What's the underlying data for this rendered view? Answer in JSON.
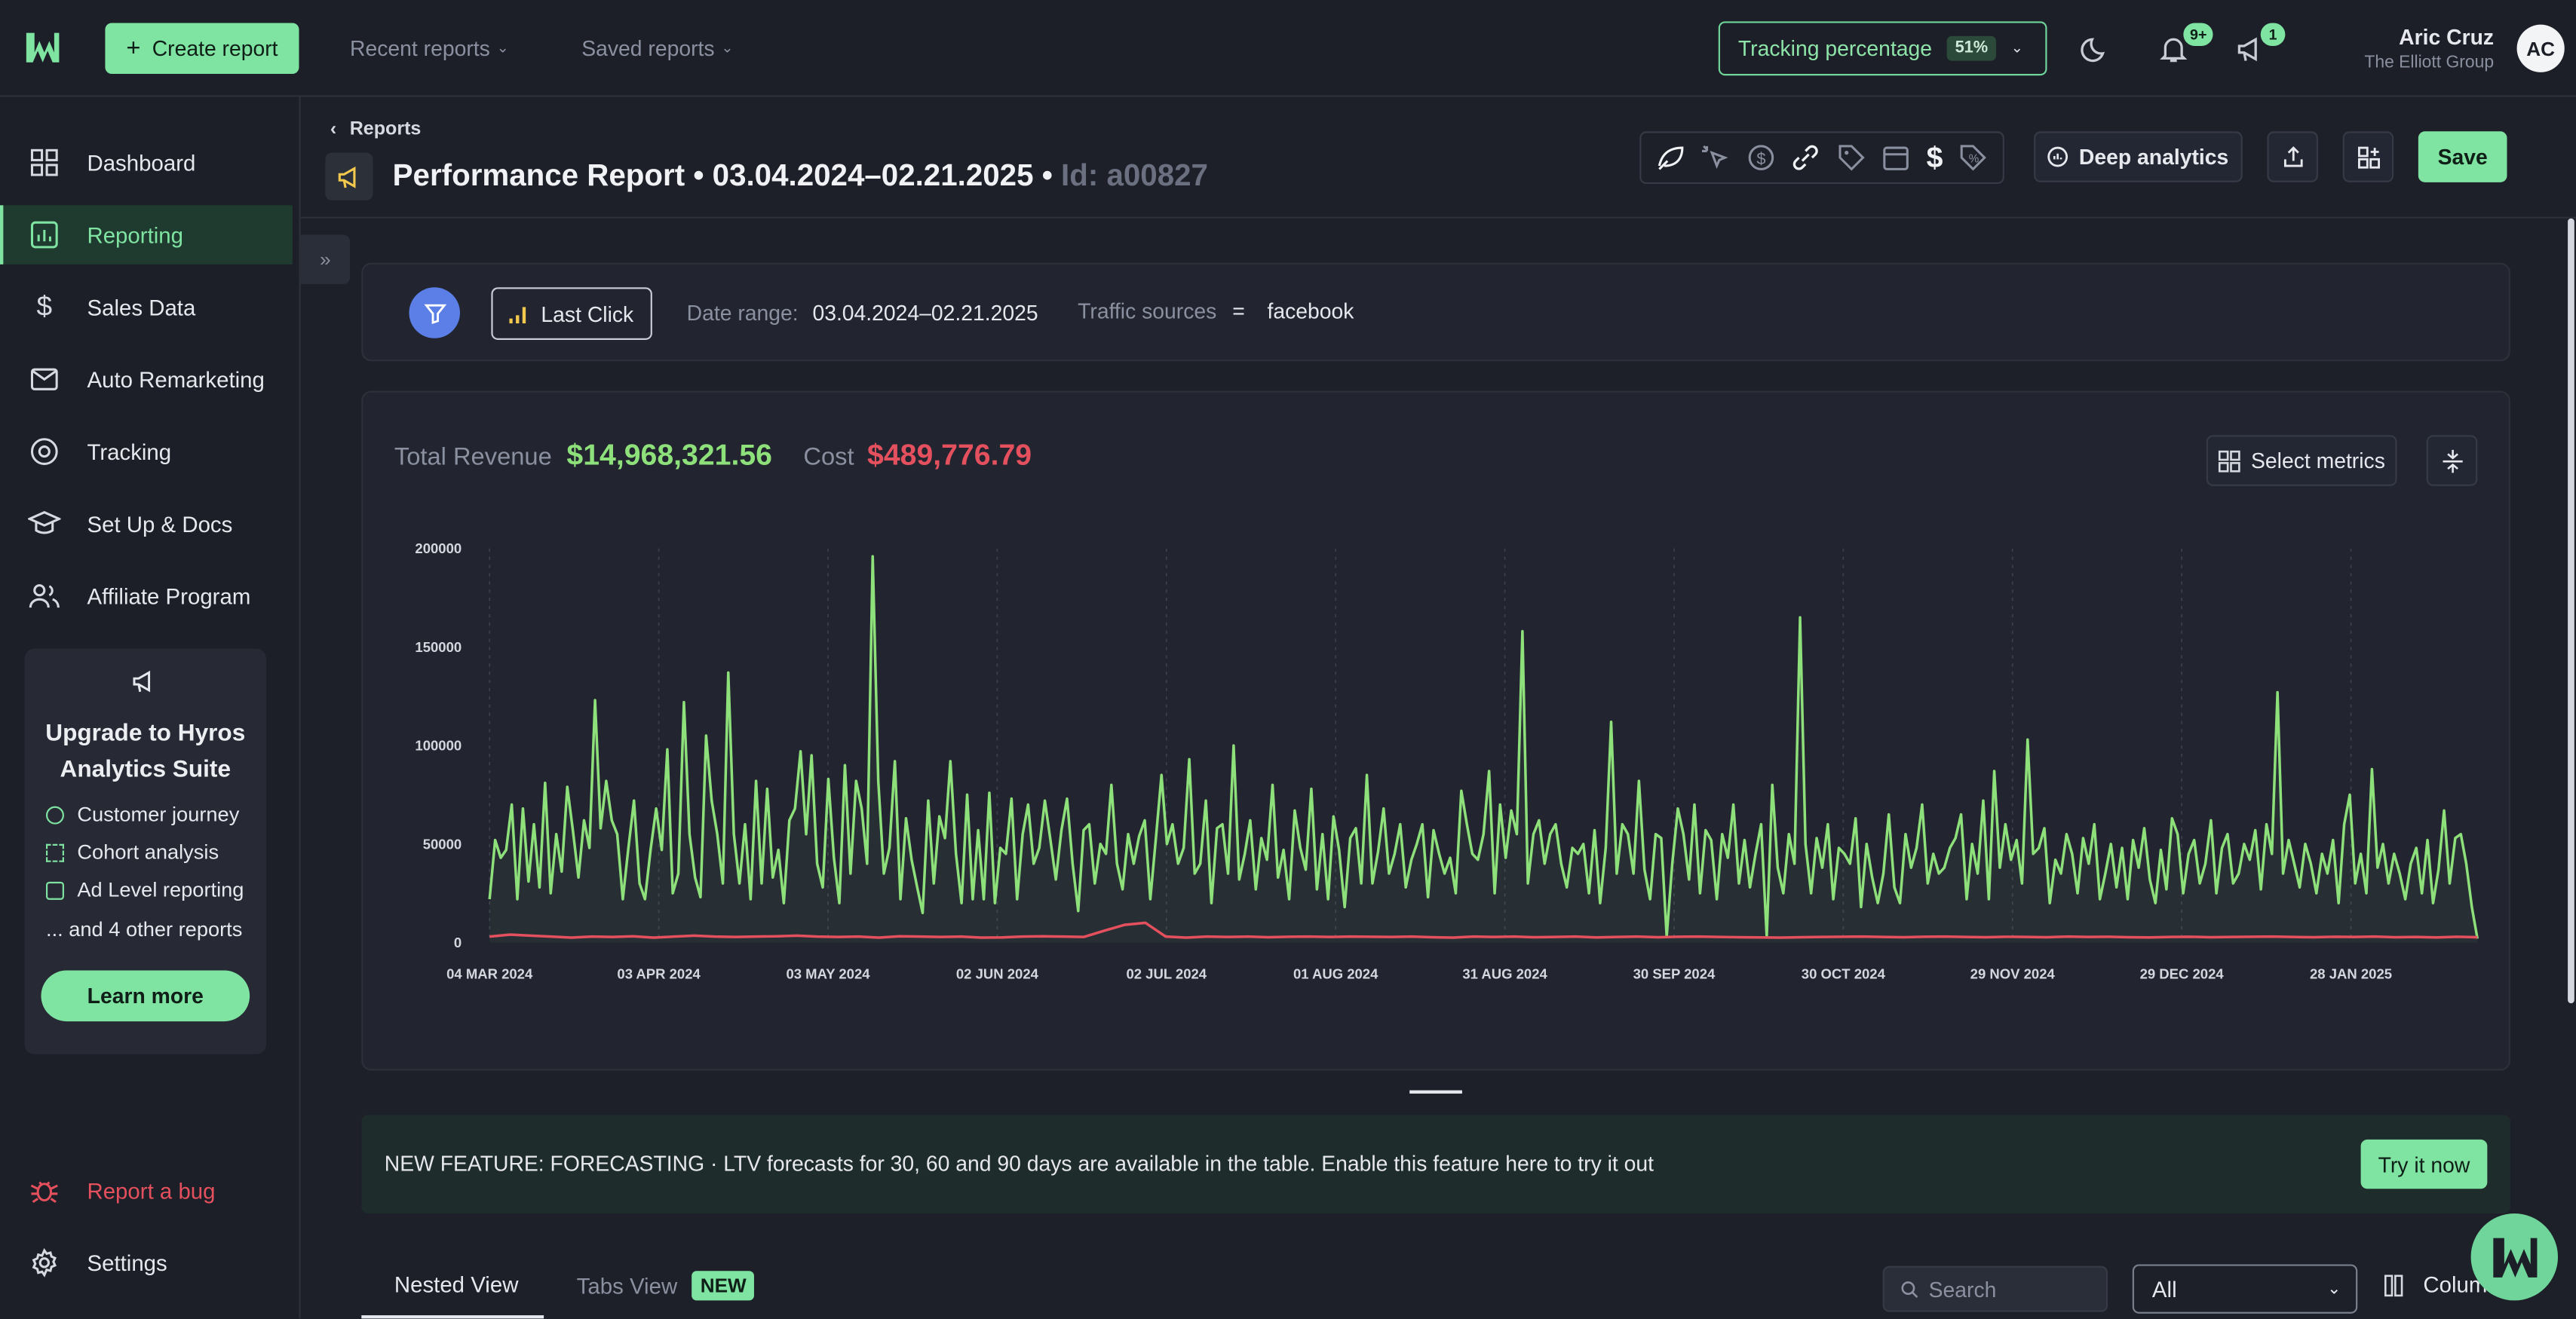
{
  "topbar": {
    "create_report": "Create report",
    "recent_reports": "Recent reports",
    "saved_reports": "Saved reports",
    "tracking_label": "Tracking percentage",
    "tracking_value": "51%",
    "notif_count": "9+",
    "announce_count": "1",
    "user_name": "Aric Cruz",
    "user_org": "The Elliott Group",
    "user_initials": "AC"
  },
  "sidebar": {
    "items": [
      {
        "label": "Dashboard"
      },
      {
        "label": "Reporting"
      },
      {
        "label": "Sales Data"
      },
      {
        "label": "Auto Remarketing"
      },
      {
        "label": "Tracking"
      },
      {
        "label": "Set Up & Docs"
      },
      {
        "label": "Affiliate Program"
      }
    ],
    "upgrade": {
      "title": "Upgrade to Hyros Analytics Suite",
      "features": [
        "Customer journey",
        "Cohort analysis",
        "Ad Level reporting",
        "... and 4 other reports"
      ],
      "learn_more": "Learn more"
    },
    "report_bug": "Report a bug",
    "settings": "Settings"
  },
  "header": {
    "breadcrumb": "Reports",
    "title": "Performance Report • 03.04.2024–02.21.2025 •",
    "report_id": "Id: a00827",
    "deep_analytics": "Deep analytics",
    "save": "Save"
  },
  "filters": {
    "attribution": "Last Click",
    "date_range_label": "Date range:",
    "date_range_value": "03.04.2024–02.21.2025",
    "traffic_label": "Traffic sources",
    "traffic_op": "=",
    "traffic_value": "facebook"
  },
  "summary": {
    "revenue_label": "Total Revenue",
    "revenue_value": "$14,968,321.56",
    "cost_label": "Cost",
    "cost_value": "$489,776.79",
    "select_metrics": "Select metrics"
  },
  "colors": {
    "revenue": "#8ee07a",
    "cost": "#e4505d",
    "accent": "#7fe3a1"
  },
  "chart_data": {
    "type": "line",
    "title": "",
    "xlabel": "",
    "ylabel": "",
    "ylim": [
      0,
      200000
    ],
    "y_ticks": [
      0,
      50000,
      100000,
      150000,
      200000
    ],
    "y_tick_labels": [
      "0",
      "50000",
      "100000",
      "150000",
      "200000"
    ],
    "x_tick_labels": [
      "04 MAR 2024",
      "03 APR 2024",
      "03 MAY 2024",
      "02 JUN 2024",
      "02 JUL 2024",
      "01 AUG 2024",
      "31 AUG 2024",
      "30 SEP 2024",
      "30 OCT 2024",
      "29 NOV 2024",
      "29 DEC 2024",
      "28 JAN 2025"
    ],
    "x_start": "04 MAR 2024",
    "x_end": "21 FEB 2025",
    "grid": "vertical dashed",
    "series": [
      {
        "values": [
          22000,
          52000,
          43000,
          47000,
          70000,
          22000,
          68000,
          31000,
          60000,
          28000,
          81000,
          25000,
          55000,
          36000,
          79000,
          57000,
          33000,
          62000,
          48000,
          123000,
          58000,
          82000,
          62000,
          55000,
          22000,
          48000,
          72000,
          30000,
          22000,
          47000,
          68000,
          47000,
          98000,
          25000,
          35000,
          122000,
          55000,
          33000,
          23000,
          105000,
          72000,
          55000,
          30000,
          137000,
          55000,
          30000,
          60000,
          22000,
          82000,
          30000,
          78000,
          33000,
          47000,
          20000,
          62000,
          68000,
          97000,
          55000,
          95000,
          40000,
          28000,
          83000,
          43000,
          20000,
          90000,
          35000,
          82000,
          68000,
          40000,
          196000,
          82000,
          35000,
          48000,
          92000,
          22000,
          63000,
          42000,
          28000,
          15000,
          72000,
          30000,
          64000,
          53000,
          92000,
          45000,
          20000,
          75000,
          22000,
          57000,
          22000,
          76000,
          20000,
          48000,
          45000,
          73000,
          22000,
          55000,
          70000,
          40000,
          48000,
          72000,
          52000,
          32000,
          57000,
          73000,
          40000,
          16000,
          57000,
          60000,
          30000,
          50000,
          45000,
          80000,
          40000,
          27000,
          55000,
          40000,
          54000,
          62000,
          22000,
          53000,
          85000,
          50000,
          60000,
          40000,
          48000,
          93000,
          35000,
          40000,
          72000,
          20000,
          58000,
          60000,
          35000,
          100000,
          32000,
          45000,
          62000,
          27000,
          53000,
          42000,
          80000,
          33000,
          47000,
          22000,
          67000,
          48000,
          37000,
          78000,
          27000,
          55000,
          22000,
          64000,
          47000,
          18000,
          53000,
          58000,
          30000,
          85000,
          30000,
          46000,
          68000,
          35000,
          45000,
          60000,
          28000,
          42000,
          50000,
          60000,
          23000,
          57000,
          45000,
          35000,
          43000,
          25000,
          77000,
          60000,
          45000,
          42000,
          55000,
          87000,
          25000,
          70000,
          43000,
          67000,
          55000,
          158000,
          30000,
          55000,
          62000,
          40000,
          55000,
          60000,
          40000,
          28000,
          48000,
          45000,
          50000,
          25000,
          57000,
          20000,
          48000,
          112000,
          35000,
          60000,
          55000,
          35000,
          82000,
          37000,
          22000,
          55000,
          53000,
          3000,
          40000,
          68000,
          55000,
          32000,
          70000,
          25000,
          57000,
          52000,
          22000,
          55000,
          43000,
          70000,
          30000,
          52000,
          28000,
          45000,
          60000,
          3000,
          80000,
          38000,
          25000,
          55000,
          40000,
          165000,
          50000,
          25000,
          53000,
          38000,
          60000,
          22000,
          48000,
          45000,
          40000,
          63000,
          18000,
          50000,
          33000,
          20000,
          35000,
          65000,
          28000,
          20000,
          55000,
          38000,
          48000,
          70000,
          30000,
          45000,
          35000,
          38000,
          48000,
          53000,
          65000,
          22000,
          50000,
          35000,
          72000,
          22000,
          87000,
          38000,
          60000,
          42000,
          52000,
          30000,
          103000,
          45000,
          48000,
          58000,
          20000,
          42000,
          35000,
          55000,
          45000,
          25000,
          53000,
          40000,
          60000,
          22000,
          35000,
          50000,
          28000,
          48000,
          22000,
          52000,
          38000,
          58000,
          32000,
          20000,
          47000,
          27000,
          63000,
          55000,
          25000,
          45000,
          52000,
          30000,
          40000,
          62000,
          25000,
          48000,
          55000,
          30000,
          35000,
          50000,
          42000,
          57000,
          27000,
          60000,
          45000,
          127000,
          35000,
          52000,
          40000,
          28000,
          50000,
          40000,
          25000,
          45000,
          35000,
          52000,
          20000,
          60000,
          75000,
          30000,
          45000,
          25000,
          88000,
          38000,
          50000,
          30000,
          45000,
          35000,
          22000,
          40000,
          48000,
          25000,
          52000,
          20000,
          37000,
          67000,
          30000,
          53000,
          55000,
          40000,
          18000,
          2000
        ]
      },
      {
        "values": [
          3000,
          4000,
          3500,
          3000,
          2500,
          3000,
          2800,
          3200,
          2500,
          3000,
          3500,
          3000,
          2800,
          3000,
          3200,
          3500,
          3000,
          2800,
          3000,
          2500,
          3200,
          3000,
          2800,
          3000,
          2500,
          2600,
          3000,
          3200,
          3000,
          2800,
          6000,
          9000,
          10000,
          3000,
          2500,
          3000,
          2800,
          3000,
          2700,
          2900,
          3000,
          2800,
          3000,
          2900,
          2800,
          3000,
          2700,
          2500,
          3000,
          2800,
          3000,
          2700,
          2800,
          3000,
          2600,
          2800,
          3000,
          2700,
          2900,
          3000,
          2800,
          2700,
          2600,
          2500,
          2700,
          2800,
          2900,
          3000,
          2800,
          2700,
          2900,
          3000,
          2800,
          2700,
          2900,
          2800,
          2700,
          3000,
          2800,
          2900,
          2700,
          2600,
          2800,
          2900,
          2700,
          2800,
          2900,
          3000,
          2800,
          2700,
          2900,
          2800,
          3000,
          2700,
          2800,
          2600,
          2900,
          2700
        ]
      }
    ]
  },
  "banner": {
    "text": "NEW FEATURE: FORECASTING · LTV forecasts for 30, 60 and 90 days are available in the table. Enable this feature here to try it out",
    "button": "Try it now"
  },
  "tabs": {
    "nested_view": "Nested View",
    "tabs_view": "Tabs View",
    "new_badge": "NEW",
    "search_placeholder": "Search",
    "filter_value": "All",
    "columns": "Colum"
  }
}
